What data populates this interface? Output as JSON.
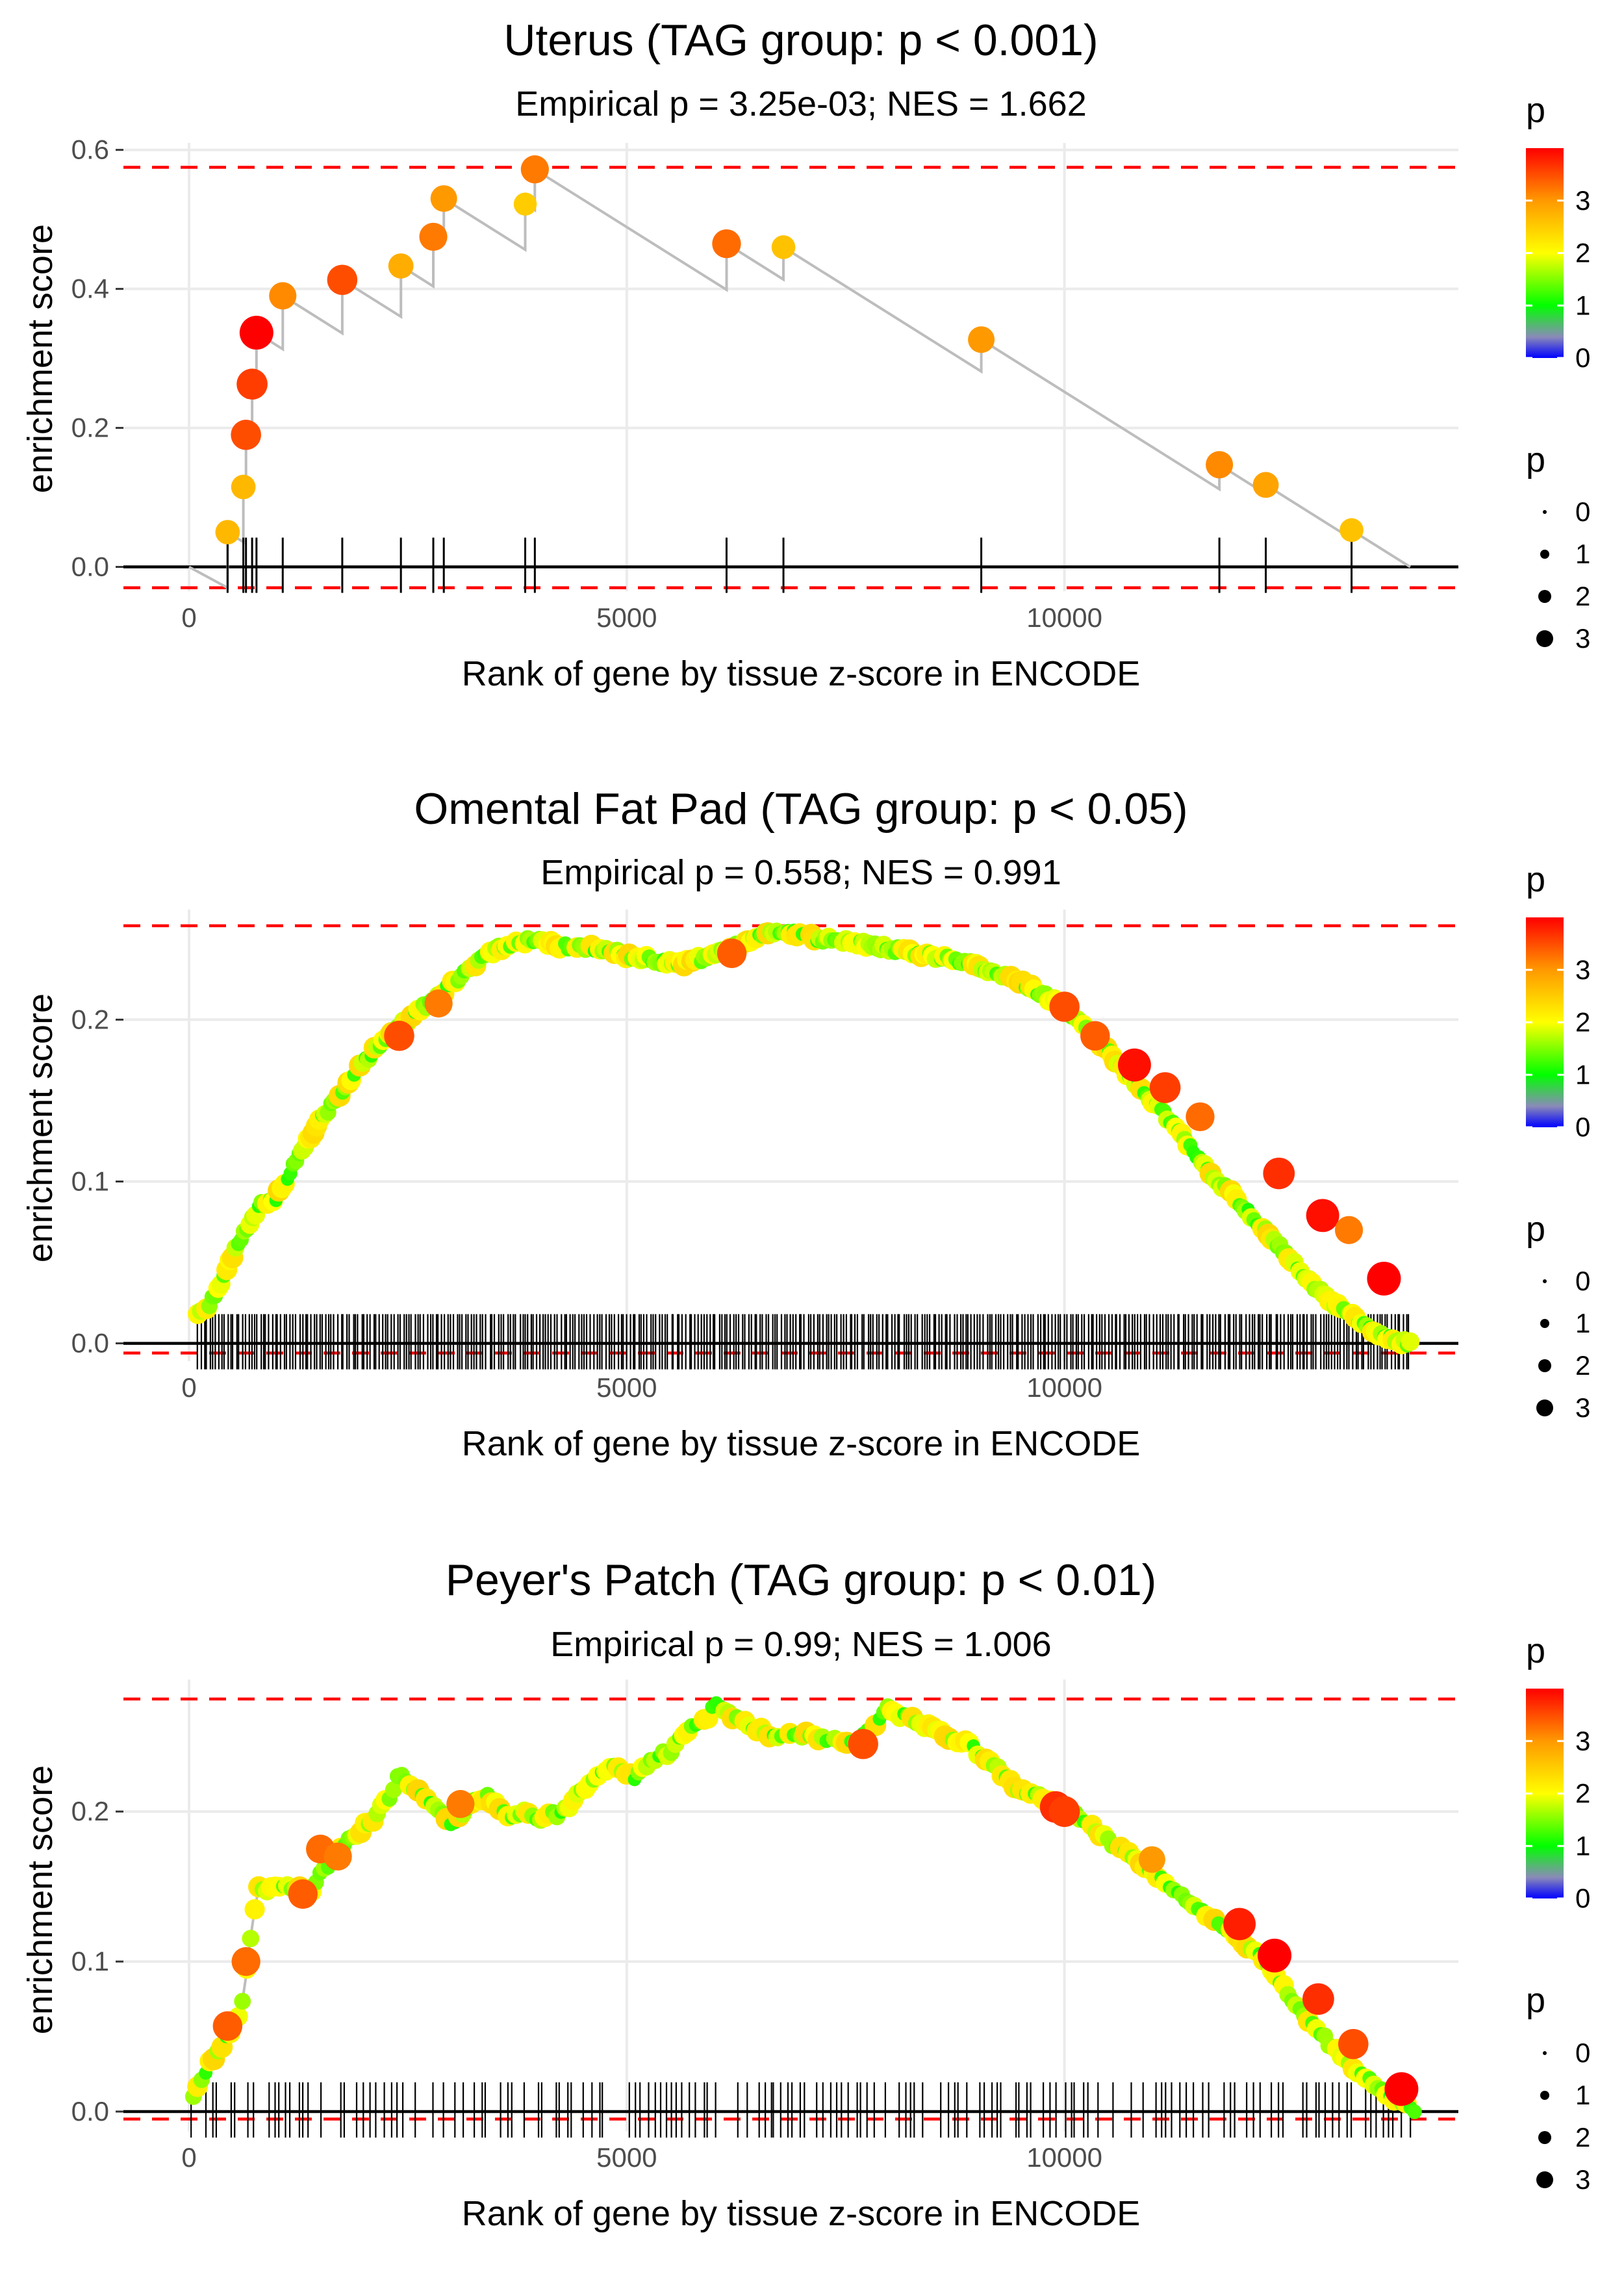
{
  "chart_data": [
    {
      "type": "scatter",
      "id": "uterus",
      "title": "Uterus (TAG group: p < 0.001)",
      "subtitle": "Empirical p = 3.25e-03; NES = 1.662",
      "xlabel": "Rank of gene by tissue z-score in ENCODE",
      "ylabel": "enrichment score",
      "xlim": [
        -750,
        14500
      ],
      "ylim": [
        -0.035,
        0.61
      ],
      "xticks": [
        0,
        5000,
        10000
      ],
      "xtick_labels": [
        "0",
        "5000",
        "10000"
      ],
      "yticks": [
        0.0,
        0.2,
        0.4,
        0.6
      ],
      "ytick_labels": [
        "0.0",
        "0.2",
        "0.4",
        "0.6"
      ],
      "hlines": [
        0.575,
        -0.03
      ],
      "line_end": [
        13950,
        0
      ],
      "legend_color_title": "p",
      "legend_color_labels": [
        "0",
        "1",
        "2",
        "3"
      ],
      "legend_size_title": "p",
      "legend_size_labels": [
        "0",
        "1",
        "2",
        "3"
      ],
      "points": [
        {
          "x": 440,
          "y": 0.05,
          "p": 2.7
        },
        {
          "x": 620,
          "y": 0.115,
          "p": 2.7
        },
        {
          "x": 650,
          "y": 0.19,
          "p": 3.5
        },
        {
          "x": 720,
          "y": 0.263,
          "p": 3.6
        },
        {
          "x": 770,
          "y": 0.337,
          "p": 4.0
        },
        {
          "x": 1070,
          "y": 0.39,
          "p": 3.1
        },
        {
          "x": 1750,
          "y": 0.413,
          "p": 3.5
        },
        {
          "x": 2420,
          "y": 0.433,
          "p": 2.8
        },
        {
          "x": 2790,
          "y": 0.475,
          "p": 3.2
        },
        {
          "x": 2910,
          "y": 0.53,
          "p": 3.0
        },
        {
          "x": 3840,
          "y": 0.522,
          "p": 2.5
        },
        {
          "x": 3950,
          "y": 0.572,
          "p": 3.2
        },
        {
          "x": 6140,
          "y": 0.465,
          "p": 3.3
        },
        {
          "x": 6790,
          "y": 0.46,
          "p": 2.6
        },
        {
          "x": 9050,
          "y": 0.327,
          "p": 3.0
        },
        {
          "x": 11770,
          "y": 0.147,
          "p": 3.1
        },
        {
          "x": 12300,
          "y": 0.118,
          "p": 2.9
        },
        {
          "x": 13280,
          "y": 0.053,
          "p": 2.6
        }
      ]
    },
    {
      "type": "scatter",
      "id": "omental",
      "title": "Omental Fat Pad (TAG group: p < 0.05)",
      "subtitle": "Empirical p = 0.558; NES = 0.991",
      "xlabel": "Rank of gene by tissue z-score in ENCODE",
      "ylabel": "enrichment score",
      "xlim": [
        -750,
        14500
      ],
      "ylim": [
        -0.011,
        0.268
      ],
      "xticks": [
        0,
        5000,
        10000
      ],
      "xtick_labels": [
        "0",
        "5000",
        "10000"
      ],
      "yticks": [
        0.0,
        0.1,
        0.2
      ],
      "ytick_labels": [
        "0.0",
        "0.1",
        "0.2"
      ],
      "hlines": [
        0.258,
        -0.006
      ],
      "legend_color_title": "p",
      "legend_color_labels": [
        "0",
        "1",
        "2",
        "3"
      ],
      "legend_size_title": "p",
      "legend_size_labels": [
        "0",
        "1",
        "2",
        "3"
      ],
      "curve_x": [
        100,
        200,
        350,
        500,
        650,
        800,
        1000,
        1200,
        1400,
        1600,
        1800,
        2000,
        2200,
        2400,
        2600,
        2800,
        3000,
        3200,
        3400,
        3600,
        3800,
        4000,
        4200,
        4400,
        4600,
        4800,
        5000,
        5200,
        5400,
        5600,
        5800,
        6000,
        6200,
        6400,
        6600,
        6800,
        7000,
        7200,
        7400,
        7600,
        7800,
        8000,
        8200,
        8400,
        8600,
        8800,
        9000,
        9200,
        9400,
        9600,
        9800,
        10000,
        10200,
        10400,
        10600,
        10800,
        11000,
        11200,
        11400,
        11600,
        11800,
        12000,
        12200,
        12400,
        12600,
        12800,
        13000,
        13200,
        13400,
        13600,
        13800,
        13950
      ],
      "curve_y": [
        0.018,
        0.022,
        0.035,
        0.055,
        0.07,
        0.085,
        0.09,
        0.11,
        0.13,
        0.145,
        0.16,
        0.175,
        0.185,
        0.195,
        0.205,
        0.212,
        0.222,
        0.232,
        0.24,
        0.246,
        0.248,
        0.249,
        0.246,
        0.245,
        0.244,
        0.242,
        0.24,
        0.238,
        0.236,
        0.235,
        0.237,
        0.24,
        0.244,
        0.249,
        0.253,
        0.255,
        0.252,
        0.25,
        0.249,
        0.248,
        0.246,
        0.244,
        0.242,
        0.24,
        0.238,
        0.236,
        0.233,
        0.23,
        0.226,
        0.22,
        0.214,
        0.207,
        0.197,
        0.186,
        0.174,
        0.162,
        0.15,
        0.138,
        0.124,
        0.11,
        0.098,
        0.087,
        0.075,
        0.063,
        0.052,
        0.038,
        0.028,
        0.02,
        0.012,
        0.006,
        0.002,
        0.0
      ],
      "highlight_points": [
        {
          "x": 2400,
          "y": 0.19,
          "p": 3.5
        },
        {
          "x": 2850,
          "y": 0.21,
          "p": 3.2
        },
        {
          "x": 6200,
          "y": 0.241,
          "p": 3.4
        },
        {
          "x": 10000,
          "y": 0.208,
          "p": 3.5
        },
        {
          "x": 10350,
          "y": 0.19,
          "p": 3.4
        },
        {
          "x": 10800,
          "y": 0.172,
          "p": 3.9
        },
        {
          "x": 11150,
          "y": 0.158,
          "p": 3.6
        },
        {
          "x": 11550,
          "y": 0.14,
          "p": 3.3
        },
        {
          "x": 12450,
          "y": 0.105,
          "p": 3.7
        },
        {
          "x": 12950,
          "y": 0.079,
          "p": 3.9
        },
        {
          "x": 13250,
          "y": 0.07,
          "p": 3.2
        },
        {
          "x": 13650,
          "y": 0.04,
          "p": 4.0
        }
      ]
    },
    {
      "type": "scatter",
      "id": "peyers",
      "title": "Peyer's Patch (TAG group: p < 0.01)",
      "subtitle": "Empirical p = 0.99; NES = 1.006",
      "xlabel": "Rank of gene by tissue z-score in ENCODE",
      "ylabel": "enrichment score",
      "xlim": [
        -750,
        14500
      ],
      "ylim": [
        -0.013,
        0.288
      ],
      "xticks": [
        0,
        5000,
        10000
      ],
      "xtick_labels": [
        "0",
        "5000",
        "10000"
      ],
      "yticks": [
        0.0,
        0.1,
        0.2
      ],
      "ytick_labels": [
        "0.0",
        "0.1",
        "0.2"
      ],
      "hlines": [
        0.275,
        -0.005
      ],
      "legend_color_title": "p",
      "legend_color_labels": [
        "0",
        "1",
        "2",
        "3"
      ],
      "legend_size_title": "p",
      "legend_size_labels": [
        "0",
        "1",
        "2",
        "3"
      ],
      "curve_x": [
        50,
        120,
        200,
        300,
        400,
        500,
        600,
        650,
        700,
        750,
        800,
        900,
        1000,
        1100,
        1200,
        1300,
        1400,
        1500,
        1600,
        1700,
        1800,
        1900,
        2000,
        2100,
        2200,
        2300,
        2400,
        2800,
        3000,
        3100,
        3200,
        3300,
        3400,
        3500,
        3600,
        3700,
        3800,
        3900,
        4000,
        4100,
        4200,
        4300,
        4400,
        4500,
        4600,
        4700,
        4800,
        4900,
        5000,
        5100,
        5200,
        5300,
        5400,
        5500,
        5600,
        5700,
        5800,
        5900,
        6000,
        6100,
        6300,
        6500,
        6700,
        6900,
        7100,
        7300,
        7500,
        7700,
        7900,
        8000,
        8100,
        8300,
        8500,
        8700,
        8900,
        9300,
        9400,
        9600,
        9800,
        10000,
        10200,
        10400,
        10600,
        10800,
        11000,
        11200,
        11400,
        11600,
        11800,
        12000,
        12200,
        12400,
        12600,
        12800,
        13000,
        13200,
        13400,
        13600,
        13800,
        13900,
        14000
      ],
      "curve_y": [
        0.01,
        0.02,
        0.028,
        0.038,
        0.047,
        0.057,
        0.07,
        0.09,
        0.115,
        0.135,
        0.15,
        0.148,
        0.152,
        0.15,
        0.147,
        0.15,
        0.145,
        0.158,
        0.165,
        0.172,
        0.18,
        0.185,
        0.19,
        0.195,
        0.203,
        0.21,
        0.225,
        0.205,
        0.19,
        0.198,
        0.205,
        0.208,
        0.21,
        0.205,
        0.2,
        0.195,
        0.2,
        0.198,
        0.195,
        0.2,
        0.198,
        0.202,
        0.208,
        0.215,
        0.22,
        0.225,
        0.23,
        0.228,
        0.226,
        0.223,
        0.23,
        0.235,
        0.24,
        0.238,
        0.25,
        0.255,
        0.258,
        0.26,
        0.272,
        0.268,
        0.26,
        0.255,
        0.25,
        0.253,
        0.25,
        0.248,
        0.245,
        0.25,
        0.262,
        0.27,
        0.265,
        0.26,
        0.255,
        0.248,
        0.245,
        0.225,
        0.218,
        0.212,
        0.207,
        0.202,
        0.195,
        0.185,
        0.177,
        0.168,
        0.16,
        0.15,
        0.14,
        0.132,
        0.125,
        0.115,
        0.105,
        0.092,
        0.075,
        0.06,
        0.047,
        0.035,
        0.025,
        0.015,
        0.008,
        0.004,
        0.0
      ],
      "highlight_points": [
        {
          "x": 440,
          "y": 0.057,
          "p": 3.4
        },
        {
          "x": 650,
          "y": 0.1,
          "p": 3.3
        },
        {
          "x": 1300,
          "y": 0.145,
          "p": 3.4
        },
        {
          "x": 1500,
          "y": 0.175,
          "p": 3.3
        },
        {
          "x": 1700,
          "y": 0.17,
          "p": 3.2
        },
        {
          "x": 3100,
          "y": 0.205,
          "p": 3.2
        },
        {
          "x": 7700,
          "y": 0.245,
          "p": 3.5
        },
        {
          "x": 9900,
          "y": 0.203,
          "p": 3.7
        },
        {
          "x": 10000,
          "y": 0.2,
          "p": 3.6
        },
        {
          "x": 11000,
          "y": 0.168,
          "p": 3.0
        },
        {
          "x": 12000,
          "y": 0.125,
          "p": 3.8
        },
        {
          "x": 12400,
          "y": 0.104,
          "p": 4.0
        },
        {
          "x": 12900,
          "y": 0.075,
          "p": 3.7
        },
        {
          "x": 13300,
          "y": 0.045,
          "p": 3.5
        },
        {
          "x": 13850,
          "y": 0.015,
          "p": 4.0
        }
      ]
    }
  ]
}
